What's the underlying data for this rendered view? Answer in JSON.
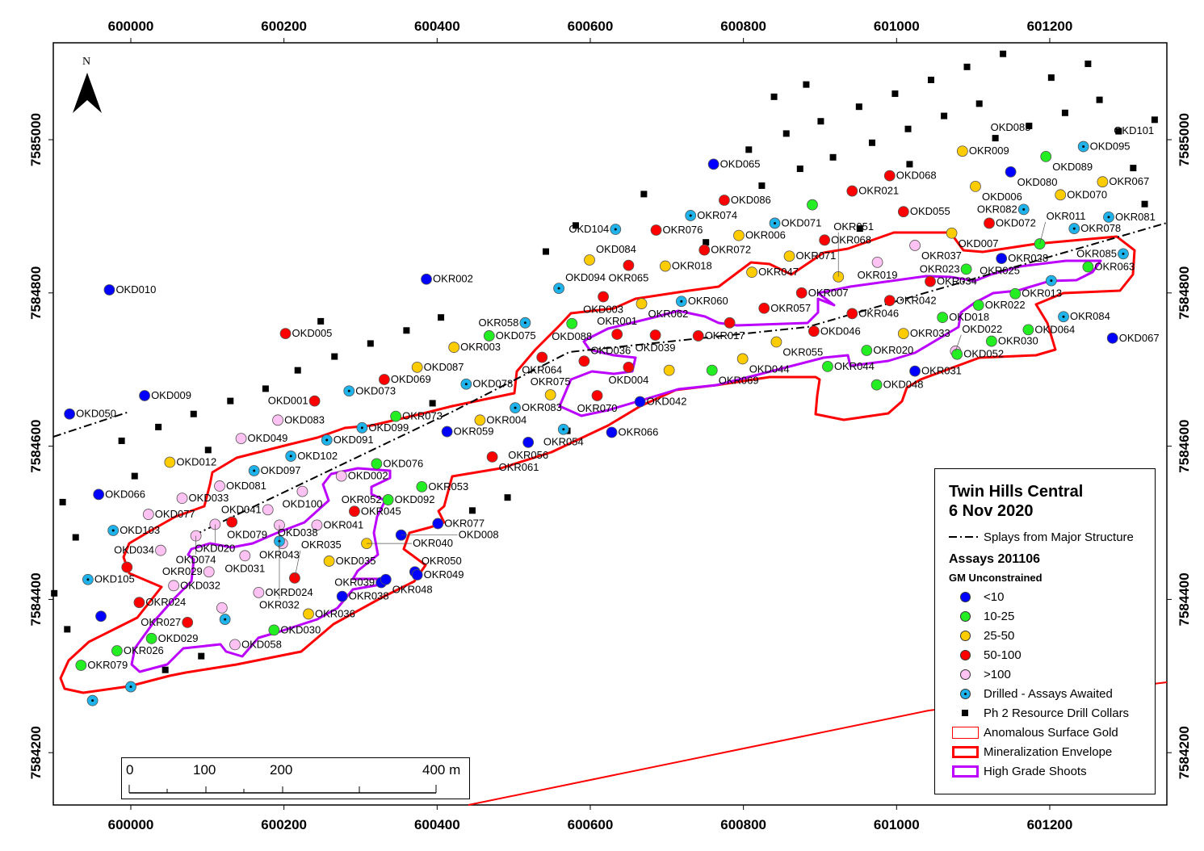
{
  "map": {
    "north_label": "N",
    "x_ticks": [
      600000,
      600200,
      600400,
      600600,
      600800,
      601000,
      601200
    ],
    "y_ticks": [
      7585000,
      7584800,
      7584600,
      7584400,
      7584200
    ],
    "extent": {
      "e_min": 599899,
      "e_max": 601353,
      "n_min": 7584131,
      "n_max": 7585126
    },
    "scale_bar": {
      "labels": [
        "0",
        "100",
        "200",
        "400 m"
      ]
    }
  },
  "legend": {
    "title_line1": "Twin Hills Central",
    "title_line2": "6 Nov 2020",
    "splays_label": "Splays from Major Structure",
    "assays_heading": "Assays 201106",
    "gm_heading": "GM Unconstrained",
    "classes": [
      {
        "code": "b",
        "label": "<10",
        "color": "#0000ff"
      },
      {
        "code": "g",
        "label": "10-25",
        "color": "#22ee22"
      },
      {
        "code": "y",
        "label": "25-50",
        "color": "#ffcc00"
      },
      {
        "code": "r",
        "label": "50-100",
        "color": "#ff0000"
      },
      {
        "code": "p",
        "label": ">100",
        "color": "#ffc2f2"
      },
      {
        "code": "a",
        "label": "Drilled - Assays Awaited",
        "color": "#1eb4eb"
      }
    ],
    "collars_label": "Ph 2 Resource Drill Collars",
    "surface_gold_label": "Anomalous Surface Gold",
    "envelope_label": "Mineralization Envelope",
    "shoots_label": "High Grade Shoots",
    "envelope_color": "#ff0000",
    "shoots_color": "#bb00ff"
  },
  "points": [
    {
      "id": "OKD010",
      "c": "b",
      "e": 599972,
      "n": 7584804
    },
    {
      "id": "OKD050",
      "c": "b",
      "e": 599920,
      "n": 7584642
    },
    {
      "id": "OKD009",
      "c": "b",
      "e": 600018,
      "n": 7584666
    },
    {
      "id": "OKD066",
      "c": "b",
      "e": 599958,
      "n": 7584537
    },
    {
      "id": "OKD012",
      "c": "y",
      "e": 600051,
      "n": 7584579
    },
    {
      "id": "OKD103",
      "c": "a",
      "e": 599977,
      "n": 7584490
    },
    {
      "id": "OKD077",
      "c": "p",
      "e": 600023,
      "n": 7584511
    },
    {
      "id": "OKD033",
      "c": "p",
      "e": 600067,
      "n": 7584532
    },
    {
      "id": "OKD081",
      "c": "p",
      "e": 600116,
      "n": 7584548
    },
    {
      "id": "OKD097",
      "c": "a",
      "e": 600161,
      "n": 7584568
    },
    {
      "id": "OKD049",
      "c": "p",
      "e": 600144,
      "n": 7584610
    },
    {
      "id": "OKD083",
      "c": "p",
      "e": 600192,
      "n": 7584634
    },
    {
      "id": "OKD001",
      "c": "r",
      "e": 600240,
      "n": 7584659
    },
    {
      "id": "OKD073",
      "c": "a",
      "e": 600285,
      "n": 7584672
    },
    {
      "id": "OKD005",
      "c": "r",
      "e": 600202,
      "n": 7584747
    },
    {
      "id": "OKD102",
      "c": "a",
      "e": 600209,
      "n": 7584587
    },
    {
      "id": "OKD091",
      "c": "a",
      "e": 600256,
      "n": 7584608
    },
    {
      "id": "OKD099",
      "c": "a",
      "e": 600302,
      "n": 7584624
    },
    {
      "id": "OKR073",
      "c": "g",
      "e": 600346,
      "n": 7584639
    },
    {
      "id": "OKD069",
      "c": "r",
      "e": 600331,
      "n": 7584687
    },
    {
      "id": "OKD087",
      "c": "y",
      "e": 600374,
      "n": 7584703
    },
    {
      "id": "OKR003",
      "c": "y",
      "e": 600422,
      "n": 7584729
    },
    {
      "id": "OKD076",
      "c": "g",
      "e": 600321,
      "n": 7584577
    },
    {
      "id": "OKD092",
      "c": "g",
      "e": 600336,
      "n": 7584530
    },
    {
      "id": "OKR052",
      "c": "g",
      "e": 600336,
      "n": 7584530
    },
    {
      "id": "OKR053",
      "c": "g",
      "e": 600380,
      "n": 7584547
    },
    {
      "id": "OKD002",
      "c": "p",
      "e": 600275,
      "n": 7584561
    },
    {
      "id": "OKD100",
      "c": "p",
      "e": 600224,
      "n": 7584541
    },
    {
      "id": "OKD041",
      "c": "p",
      "e": 600179,
      "n": 7584517
    },
    {
      "id": "OKR043",
      "c": "p",
      "e": 600194,
      "n": 7584497
    },
    {
      "id": "OKR045",
      "c": "r",
      "e": 600292,
      "n": 7584515
    },
    {
      "id": "OKR041",
      "c": "p",
      "e": 600243,
      "n": 7584497
    },
    {
      "id": "OKD079",
      "c": "r",
      "e": 600132,
      "n": 7584501
    },
    {
      "id": "OKD020",
      "c": "p",
      "e": 600110,
      "n": 7584498
    },
    {
      "id": "OKD074",
      "c": "p",
      "e": 600085,
      "n": 7584483
    },
    {
      "id": "OKD034",
      "c": "p",
      "e": 600039,
      "n": 7584464
    },
    {
      "id": "OKD105",
      "c": "a",
      "e": 599944,
      "n": 7584426
    },
    {
      "id": "",
      "c": "r",
      "e": 599995,
      "n": 7584442
    },
    {
      "id": "OKD031",
      "c": "p",
      "e": 600149,
      "n": 7584457
    },
    {
      "id": "OKR029",
      "c": "p",
      "e": 600102,
      "n": 7584436
    },
    {
      "id": "OKD032",
      "c": "p",
      "e": 600056,
      "n": 7584418
    },
    {
      "id": "OKR024",
      "c": "r",
      "e": 600011,
      "n": 7584396
    },
    {
      "id": "",
      "c": "b",
      "e": 599961,
      "n": 7584378
    },
    {
      "id": "OKR026",
      "c": "g",
      "e": 599982,
      "n": 7584333
    },
    {
      "id": "OKR079",
      "c": "g",
      "e": 599935,
      "n": 7584314
    },
    {
      "id": "OKD029",
      "c": "g",
      "e": 600027,
      "n": 7584349
    },
    {
      "id": "OKR027",
      "c": "r",
      "e": 600074,
      "n": 7584370
    },
    {
      "id": "",
      "c": "a",
      "e": 600123,
      "n": 7584374
    },
    {
      "id": "",
      "c": "p",
      "e": 600119,
      "n": 7584389
    },
    {
      "id": "OKRD024",
      "c": "p",
      "e": 600167,
      "n": 7584409
    },
    {
      "id": "OKD058",
      "c": "p",
      "e": 600136,
      "n": 7584341
    },
    {
      "id": "OKD030",
      "c": "g",
      "e": 600187,
      "n": 7584360
    },
    {
      "id": "OKR036",
      "c": "y",
      "e": 600232,
      "n": 7584381
    },
    {
      "id": "OKR038",
      "c": "b",
      "e": 600276,
      "n": 7584404
    },
    {
      "id": "OKR039",
      "c": "b",
      "e": 600327,
      "n": 7584422
    },
    {
      "id": "OKR048",
      "c": "b",
      "e": 600333,
      "n": 7584426
    },
    {
      "id": "OKR050",
      "c": "b",
      "e": 600371,
      "n": 7584436
    },
    {
      "id": "OKR049",
      "c": "b",
      "e": 600374,
      "n": 7584432
    },
    {
      "id": "OKR035",
      "c": "r",
      "e": 600214,
      "n": 7584428
    },
    {
      "id": "OKD035",
      "c": "y",
      "e": 600259,
      "n": 7584450
    },
    {
      "id": "OKR040",
      "c": "y",
      "e": 600308,
      "n": 7584473
    },
    {
      "id": "OKD008",
      "c": "b",
      "e": 600353,
      "n": 7584484
    },
    {
      "id": "OKD038",
      "c": "p",
      "e": 600198,
      "n": 7584473
    },
    {
      "id": "OKR032",
      "c": "a",
      "e": 600194,
      "n": 7584476
    },
    {
      "id": "OKR077",
      "c": "b",
      "e": 600401,
      "n": 7584499
    },
    {
      "id": "",
      "c": "a",
      "e": 600000,
      "n": 7584286
    },
    {
      "id": "",
      "c": "a",
      "e": 599950,
      "n": 7584268
    },
    {
      "id": "OKR002",
      "c": "b",
      "e": 600386,
      "n": 7584818
    },
    {
      "id": "OKD094",
      "c": "a",
      "e": 600559,
      "n": 7584806
    },
    {
      "id": "OKD084",
      "c": "y",
      "e": 600599,
      "n": 7584843
    },
    {
      "id": "OKR065",
      "c": "r",
      "e": 600650,
      "n": 7584836
    },
    {
      "id": "OKD104",
      "c": "a",
      "e": 600633,
      "n": 7584883
    },
    {
      "id": "OKR076",
      "c": "r",
      "e": 600686,
      "n": 7584882
    },
    {
      "id": "OKR074",
      "c": "a",
      "e": 600731,
      "n": 7584901
    },
    {
      "id": "OKR006",
      "c": "y",
      "e": 600794,
      "n": 7584875
    },
    {
      "id": "OKR072",
      "c": "r",
      "e": 600749,
      "n": 7584856
    },
    {
      "id": "OKR018",
      "c": "y",
      "e": 600698,
      "n": 7584835
    },
    {
      "id": "OKD071",
      "c": "a",
      "e": 600841,
      "n": 7584891
    },
    {
      "id": "OKR047",
      "c": "y",
      "e": 600811,
      "n": 7584827
    },
    {
      "id": "OKR071",
      "c": "y",
      "e": 600860,
      "n": 7584848
    },
    {
      "id": "OKD003",
      "c": "r",
      "e": 600617,
      "n": 7584795
    },
    {
      "id": "OKR062",
      "c": "y",
      "e": 600667,
      "n": 7584786
    },
    {
      "id": "OKR060",
      "c": "a",
      "e": 600719,
      "n": 7584789
    },
    {
      "id": "OKR007",
      "c": "r",
      "e": 600876,
      "n": 7584800
    },
    {
      "id": "OKR057",
      "c": "r",
      "e": 600827,
      "n": 7584780
    },
    {
      "id": "",
      "c": "r",
      "e": 600782,
      "n": 7584761
    },
    {
      "id": "OKD039",
      "c": "r",
      "e": 600685,
      "n": 7584745
    },
    {
      "id": "OKR017",
      "c": "r",
      "e": 600741,
      "n": 7584744
    },
    {
      "id": "OKD046",
      "c": "r",
      "e": 600892,
      "n": 7584750
    },
    {
      "id": "OKR055",
      "c": "y",
      "e": 600843,
      "n": 7584736
    },
    {
      "id": "OKD044",
      "c": "y",
      "e": 600799,
      "n": 7584714
    },
    {
      "id": "OKR069",
      "c": "g",
      "e": 600759,
      "n": 7584699
    },
    {
      "id": "",
      "c": "y",
      "e": 600703,
      "n": 7584699
    },
    {
      "id": "OKR058",
      "c": "a",
      "e": 600515,
      "n": 7584761
    },
    {
      "id": "OKD075",
      "c": "g",
      "e": 600468,
      "n": 7584744
    },
    {
      "id": "OKD088",
      "c": "g",
      "e": 600576,
      "n": 7584760
    },
    {
      "id": "OKR001",
      "c": "r",
      "e": 600635,
      "n": 7584746
    },
    {
      "id": "OKR064",
      "c": "r",
      "e": 600537,
      "n": 7584716
    },
    {
      "id": "OKD078",
      "c": "a",
      "e": 600438,
      "n": 7584681
    },
    {
      "id": "OKD036",
      "c": "r",
      "e": 600592,
      "n": 7584711
    },
    {
      "id": "OKD004",
      "c": "r",
      "e": 600650,
      "n": 7584703
    },
    {
      "id": "OKR070",
      "c": "r",
      "e": 600609,
      "n": 7584666
    },
    {
      "id": "OKR075",
      "c": "y",
      "e": 600548,
      "n": 7584667
    },
    {
      "id": "OKR083",
      "c": "a",
      "e": 600502,
      "n": 7584650
    },
    {
      "id": "OKR004",
      "c": "y",
      "e": 600456,
      "n": 7584634
    },
    {
      "id": "OKR059",
      "c": "b",
      "e": 600413,
      "n": 7584619
    },
    {
      "id": "OKR054",
      "c": "a",
      "e": 600565,
      "n": 7584622
    },
    {
      "id": "OKR056",
      "c": "b",
      "e": 600519,
      "n": 7584605
    },
    {
      "id": "OKR066",
      "c": "b",
      "e": 600628,
      "n": 7584618
    },
    {
      "id": "OKD042",
      "c": "b",
      "e": 600665,
      "n": 7584658
    },
    {
      "id": "OKR061",
      "c": "r",
      "e": 600472,
      "n": 7584586
    },
    {
      "id": "OKD065",
      "c": "b",
      "e": 600761,
      "n": 7584968
    },
    {
      "id": "OKD086",
      "c": "r",
      "e": 600775,
      "n": 7584921
    },
    {
      "id": "OKR009",
      "c": "y",
      "e": 601086,
      "n": 7584985
    },
    {
      "id": "OKD085",
      "c": "",
      "e": 601129,
      "n": 7585002
    },
    {
      "id": "OKD089",
      "c": "g",
      "e": 601195,
      "n": 7584978
    },
    {
      "id": "OKD095",
      "c": "a",
      "e": 601244,
      "n": 7584991
    },
    {
      "id": "OKD101",
      "c": "",
      "e": 601290,
      "n": 7584998
    },
    {
      "id": "OKD080",
      "c": "b",
      "e": 601149,
      "n": 7584958
    },
    {
      "id": "OKD006",
      "c": "y",
      "e": 601103,
      "n": 7584939
    },
    {
      "id": "OKD068",
      "c": "r",
      "e": 600991,
      "n": 7584953
    },
    {
      "id": "OKR021",
      "c": "r",
      "e": 600942,
      "n": 7584933
    },
    {
      "id": "",
      "c": "g",
      "e": 600890,
      "n": 7584915
    },
    {
      "id": "OKD055",
      "c": "r",
      "e": 601009,
      "n": 7584906
    },
    {
      "id": "OKD072",
      "c": "r",
      "e": 601121,
      "n": 7584891
    },
    {
      "id": "OKD007",
      "c": "y",
      "e": 601072,
      "n": 7584878
    },
    {
      "id": "OKR068",
      "c": "r",
      "e": 600906,
      "n": 7584869
    },
    {
      "id": "OKR037",
      "c": "p",
      "e": 601024,
      "n": 7584862
    },
    {
      "id": "OKR019",
      "c": "p",
      "e": 600975,
      "n": 7584840
    },
    {
      "id": "OKR051",
      "c": "y",
      "e": 600924,
      "n": 7584821
    },
    {
      "id": "OKR034",
      "c": "r",
      "e": 601044,
      "n": 7584815
    },
    {
      "id": "OKR042",
      "c": "r",
      "e": 600991,
      "n": 7584790
    },
    {
      "id": "OKR046",
      "c": "r",
      "e": 600942,
      "n": 7584773
    },
    {
      "id": "OKD018",
      "c": "g",
      "e": 601060,
      "n": 7584768
    },
    {
      "id": "OKR033",
      "c": "y",
      "e": 601009,
      "n": 7584747
    },
    {
      "id": "OKR020",
      "c": "g",
      "e": 600961,
      "n": 7584725
    },
    {
      "id": "OKR044",
      "c": "g",
      "e": 600910,
      "n": 7584704
    },
    {
      "id": "OKD048",
      "c": "g",
      "e": 600974,
      "n": 7584680
    },
    {
      "id": "OKR031",
      "c": "b",
      "e": 601024,
      "n": 7584698
    },
    {
      "id": "OKD022",
      "c": "p",
      "e": 601077,
      "n": 7584724
    },
    {
      "id": "OKD052",
      "c": "g",
      "e": 601079,
      "n": 7584720
    },
    {
      "id": "OKR030",
      "c": "g",
      "e": 601124,
      "n": 7584737
    },
    {
      "id": "OKD064",
      "c": "g",
      "e": 601172,
      "n": 7584752
    },
    {
      "id": "OKR022",
      "c": "g",
      "e": 601107,
      "n": 7584784
    },
    {
      "id": "OKR013",
      "c": "g",
      "e": 601155,
      "n": 7584799
    },
    {
      "id": "",
      "c": "a",
      "e": 601202,
      "n": 7584816
    },
    {
      "id": "OKR084",
      "c": "a",
      "e": 601218,
      "n": 7584769
    },
    {
      "id": "OKD067",
      "c": "b",
      "e": 601282,
      "n": 7584741
    },
    {
      "id": "OKR063",
      "c": "g",
      "e": 601250,
      "n": 7584834
    },
    {
      "id": "OKR085",
      "c": "a",
      "e": 601296,
      "n": 7584851
    },
    {
      "id": "OKR028",
      "c": "b",
      "e": 601137,
      "n": 7584845
    },
    {
      "id": "OKR025",
      "c": "",
      "e": 601100,
      "n": 7584850
    },
    {
      "id": "OKR023",
      "c": "g",
      "e": 601091,
      "n": 7584831
    },
    {
      "id": "OKR011",
      "c": "g",
      "e": 601187,
      "n": 7584864
    },
    {
      "id": "OKR078",
      "c": "a",
      "e": 601232,
      "n": 7584884
    },
    {
      "id": "OKR081",
      "c": "a",
      "e": 601277,
      "n": 7584899
    },
    {
      "id": "OKR082",
      "c": "a",
      "e": 601166,
      "n": 7584909
    },
    {
      "id": "OKD070",
      "c": "y",
      "e": 601214,
      "n": 7584928
    },
    {
      "id": "OKR067",
      "c": "y",
      "e": 601269,
      "n": 7584945
    }
  ],
  "collars": [
    [
      601139,
      7585112
    ],
    [
      601250,
      7585099
    ],
    [
      601092,
      7585095
    ],
    [
      601045,
      7585078
    ],
    [
      601202,
      7585081
    ],
    [
      600882,
      7585072
    ],
    [
      600998,
      7585060
    ],
    [
      600951,
      7585043
    ],
    [
      600840,
      7585056
    ],
    [
      601108,
      7585047
    ],
    [
      601265,
      7585052
    ],
    [
      600901,
      7585024
    ],
    [
      601062,
      7585031
    ],
    [
      601220,
      7585035
    ],
    [
      601015,
      7585014
    ],
    [
      601173,
      7585018
    ],
    [
      600856,
      7585008
    ],
    [
      601337,
      7585026
    ],
    [
      600968,
      7584996
    ],
    [
      601290,
      7585011
    ],
    [
      600807,
      7584987
    ],
    [
      600917,
      7584977
    ],
    [
      600874,
      7584962
    ],
    [
      600824,
      7584940
    ],
    [
      601309,
      7584963
    ],
    [
      601324,
      7584916
    ],
    [
      600670,
      7584929
    ],
    [
      600581,
      7584888
    ],
    [
      600952,
      7584884
    ],
    [
      600751,
      7584866
    ],
    [
      600542,
      7584854
    ],
    [
      600405,
      7584768
    ],
    [
      600360,
      7584751
    ],
    [
      600313,
      7584734
    ],
    [
      600266,
      7584717
    ],
    [
      600218,
      7584699
    ],
    [
      600176,
      7584675
    ],
    [
      600130,
      7584659
    ],
    [
      600082,
      7584642
    ],
    [
      600036,
      7584625
    ],
    [
      599988,
      7584607
    ],
    [
      600101,
      7584595
    ],
    [
      600005,
      7584561
    ],
    [
      599911,
      7584527
    ],
    [
      599928,
      7584481
    ],
    [
      599900,
      7584408
    ],
    [
      599917,
      7584361
    ],
    [
      600092,
      7584326
    ],
    [
      600045,
      7584308
    ],
    [
      600446,
      7584516
    ],
    [
      600492,
      7584533
    ],
    [
      600394,
      7584656
    ],
    [
      600248,
      7584763
    ],
    [
      600570,
      7584620
    ],
    [
      601129,
      7585002
    ],
    [
      601017,
      7584968
    ]
  ]
}
